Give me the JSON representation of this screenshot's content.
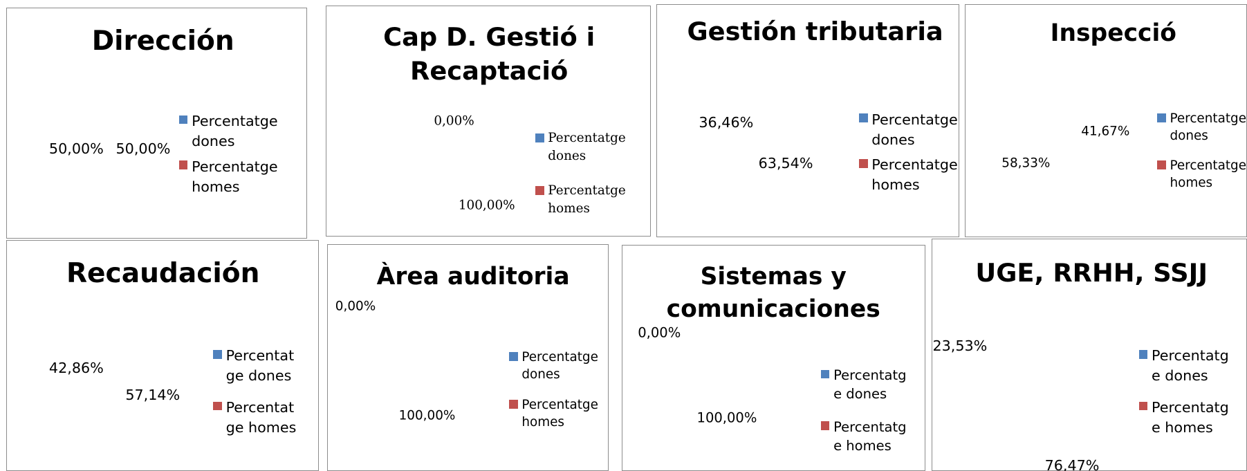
{
  "chart_data": [
    {
      "type": "pie",
      "title": "Dirección",
      "categories": [
        "Percentatge dones",
        "Percentatge homes"
      ],
      "values": [
        50.0,
        50.0
      ],
      "value_labels": [
        "50,00%",
        "50,00%"
      ],
      "colors": [
        "#4f81bd",
        "#c0504d"
      ]
    },
    {
      "type": "pie",
      "title": "Cap D. Gestió i Recaptació",
      "categories": [
        "Percentatge dones",
        "Percentatge homes"
      ],
      "values": [
        0.0,
        100.0
      ],
      "value_labels": [
        "0,00%",
        "100,00%"
      ],
      "colors": [
        "#4f81bd",
        "#c0504d"
      ]
    },
    {
      "type": "pie",
      "title": "Gestión tributaria",
      "categories": [
        "Percentatge dones",
        "Percentatge homes"
      ],
      "values": [
        63.54,
        36.46
      ],
      "value_labels": [
        "63,54%",
        "36,46%"
      ],
      "colors": [
        "#4f81bd",
        "#c0504d"
      ]
    },
    {
      "type": "pie",
      "title": "Inspecció",
      "categories": [
        "Percentatge dones",
        "Percentatge homes"
      ],
      "values": [
        41.67,
        58.33
      ],
      "value_labels": [
        "41,67%",
        "58,33%"
      ],
      "colors": [
        "#4f81bd",
        "#c0504d"
      ]
    },
    {
      "type": "pie",
      "title": "Recaudación",
      "categories": [
        "Percentatge dones",
        "Percentatge homes"
      ],
      "values": [
        57.14,
        42.86
      ],
      "value_labels": [
        "57,14%",
        "42,86%"
      ],
      "colors": [
        "#4f81bd",
        "#c0504d"
      ]
    },
    {
      "type": "pie",
      "title": "Àrea auditoria",
      "categories": [
        "Percentatge dones",
        "Percentatge homes"
      ],
      "values": [
        0.0,
        100.0
      ],
      "value_labels": [
        "0,00%",
        "100,00%"
      ],
      "colors": [
        "#4f81bd",
        "#c0504d"
      ]
    },
    {
      "type": "pie",
      "title": "Sistemas y comunicaciones",
      "categories": [
        "Percentatge dones",
        "Percentatge homes"
      ],
      "values": [
        100.0,
        0.0
      ],
      "value_labels": [
        "100,00%",
        "0,00%"
      ],
      "colors": [
        "#4f81bd",
        "#c0504d"
      ]
    },
    {
      "type": "pie",
      "title": "UGE, RRHH, SSJJ",
      "categories": [
        "Percentatge dones",
        "Percentatge homes"
      ],
      "values": [
        76.47,
        23.53
      ],
      "value_labels": [
        "76,47%",
        "23,53%"
      ],
      "colors": [
        "#4f81bd",
        "#c0504d"
      ]
    }
  ]
}
